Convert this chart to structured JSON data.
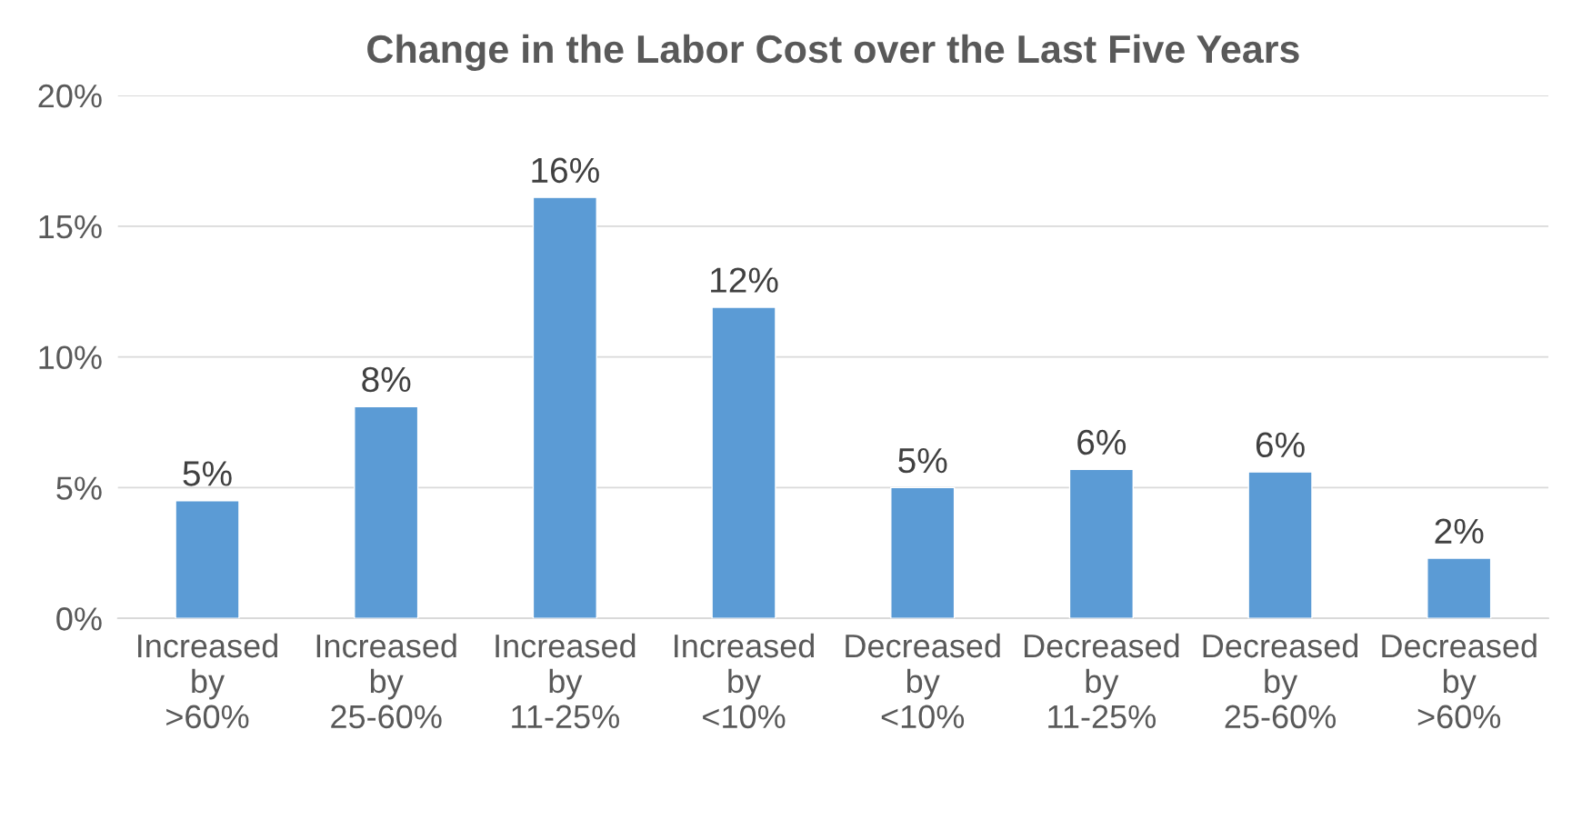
{
  "chart_data": {
    "type": "bar",
    "title": "Change in the Labor Cost over the Last Five Years",
    "categories": [
      "Increased\nby\n>60%",
      "Increased\nby\n25-60%",
      "Increased\nby\n11-25%",
      "Increased\nby\n<10%",
      "Decreased\nby\n<10%",
      "Decreased\nby\n11-25%",
      "Decreased\nby\n25-60%",
      "Decreased\nby\n>60%"
    ],
    "values": [
      4.5,
      8.1,
      16.1,
      11.9,
      5.0,
      5.7,
      5.6,
      2.3
    ],
    "value_labels": [
      "5%",
      "8%",
      "16%",
      "12%",
      "5%",
      "6%",
      "6%",
      "2%"
    ],
    "color": "#5b9bd5",
    "ylim": [
      0,
      20
    ],
    "yticks": [
      {
        "value": 0,
        "label": "0%"
      },
      {
        "value": 5,
        "label": "5%"
      },
      {
        "value": 10,
        "label": "10%"
      },
      {
        "value": 15,
        "label": "15%"
      },
      {
        "value": 20,
        "label": "20%"
      }
    ],
    "grid": "y"
  }
}
